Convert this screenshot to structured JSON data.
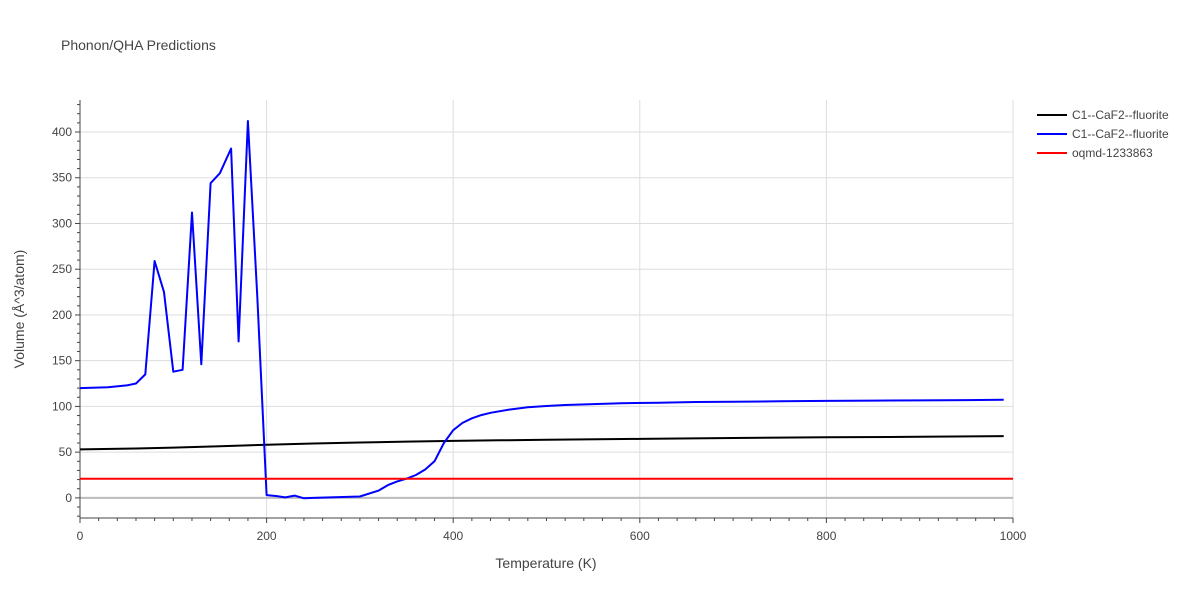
{
  "chart_data": {
    "type": "line",
    "title": "Phonon/QHA Predictions",
    "xlabel": "Temperature (K)",
    "ylabel": "Volume (Å^3/atom)",
    "xlim": [
      0,
      1000
    ],
    "ylim": [
      -22,
      435
    ],
    "x_ticks": [
      0,
      200,
      400,
      600,
      800,
      1000
    ],
    "y_ticks": [
      0,
      50,
      100,
      150,
      200,
      250,
      300,
      350,
      400
    ],
    "grid": true,
    "legend_position": "top-right",
    "series": [
      {
        "name": "C1--CaF2--fluorite",
        "color": "#000000",
        "x": [
          0,
          60,
          100,
          150,
          200,
          250,
          300,
          350,
          400,
          450,
          500,
          600,
          700,
          800,
          900,
          990
        ],
        "y": [
          53,
          54,
          55,
          56.5,
          58,
          59.5,
          60.5,
          61.5,
          62.3,
          63,
          63.5,
          64.5,
          65.5,
          66.2,
          66.8,
          67.5
        ]
      },
      {
        "name": "C1--CaF2--fluorite",
        "color": "#0000ff",
        "x": [
          0,
          30,
          50,
          60,
          70,
          80,
          90,
          100,
          110,
          120,
          130,
          140,
          150,
          162,
          170,
          180,
          190,
          200,
          210,
          220,
          230,
          240,
          250,
          300,
          320,
          330,
          340,
          350,
          360,
          370,
          380,
          390,
          400,
          410,
          420,
          430,
          440,
          460,
          480,
          500,
          520,
          550,
          580,
          620,
          660,
          700,
          750,
          800,
          850,
          900,
          950,
          990
        ],
        "y": [
          120,
          121,
          123,
          125,
          135,
          259,
          225,
          138,
          140,
          312,
          146,
          344,
          355,
          382,
          171,
          412,
          220,
          3,
          2,
          0.5,
          2.5,
          -0.5,
          0,
          1.5,
          8,
          14,
          18,
          21,
          25,
          31,
          40,
          60,
          74,
          82,
          87,
          90.5,
          93,
          96.5,
          99,
          100.5,
          101.5,
          102.5,
          103.5,
          104,
          104.8,
          105.2,
          105.6,
          106,
          106.3,
          106.6,
          106.9,
          107.2
        ]
      },
      {
        "name": "oqmd-1233863",
        "color": "#ff0000",
        "x": [
          0,
          1000
        ],
        "y": [
          21,
          21
        ]
      }
    ]
  }
}
